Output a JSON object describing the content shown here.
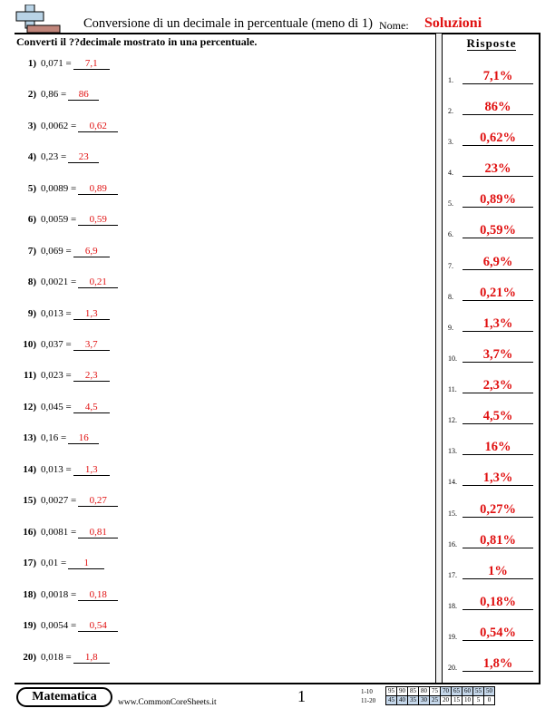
{
  "header": {
    "title": "Conversione di un decimale in percentuale (meno di 1)",
    "name_label": "Nome:",
    "solutions_label": "Soluzioni"
  },
  "instructions": "Converti il ??decimale mostrato in una percentuale.",
  "answers_header": "Risposte",
  "problems": [
    {
      "num": "1)",
      "expr": "0,071 =",
      "answer": "7,1"
    },
    {
      "num": "2)",
      "expr": "0,86 =",
      "answer": "86"
    },
    {
      "num": "3)",
      "expr": "0,0062 =",
      "answer": "0,62"
    },
    {
      "num": "4)",
      "expr": "0,23 =",
      "answer": "23"
    },
    {
      "num": "5)",
      "expr": "0,0089 =",
      "answer": "0,89"
    },
    {
      "num": "6)",
      "expr": "0,0059 =",
      "answer": "0,59"
    },
    {
      "num": "7)",
      "expr": "0,069 =",
      "answer": "6,9"
    },
    {
      "num": "8)",
      "expr": "0,0021 =",
      "answer": "0,21"
    },
    {
      "num": "9)",
      "expr": "0,013 =",
      "answer": "1,3"
    },
    {
      "num": "10)",
      "expr": "0,037 =",
      "answer": "3,7"
    },
    {
      "num": "11)",
      "expr": "0,023 =",
      "answer": "2,3"
    },
    {
      "num": "12)",
      "expr": "0,045 =",
      "answer": "4,5"
    },
    {
      "num": "13)",
      "expr": "0,16 =",
      "answer": "16"
    },
    {
      "num": "14)",
      "expr": "0,013 =",
      "answer": "1,3"
    },
    {
      "num": "15)",
      "expr": "0,0027 =",
      "answer": "0,27"
    },
    {
      "num": "16)",
      "expr": "0,0081 =",
      "answer": "0,81"
    },
    {
      "num": "17)",
      "expr": "0,01 =",
      "answer": "1"
    },
    {
      "num": "18)",
      "expr": "0,0018 =",
      "answer": "0,18"
    },
    {
      "num": "19)",
      "expr": "0,0054 =",
      "answer": "0,54"
    },
    {
      "num": "20)",
      "expr": "0,018 =",
      "answer": "1,8"
    }
  ],
  "answer_key": [
    {
      "num": "1.",
      "value": "7,1%"
    },
    {
      "num": "2.",
      "value": "86%"
    },
    {
      "num": "3.",
      "value": "0,62%"
    },
    {
      "num": "4.",
      "value": "23%"
    },
    {
      "num": "5.",
      "value": "0,89%"
    },
    {
      "num": "6.",
      "value": "0,59%"
    },
    {
      "num": "7.",
      "value": "6,9%"
    },
    {
      "num": "8.",
      "value": "0,21%"
    },
    {
      "num": "9.",
      "value": "1,3%"
    },
    {
      "num": "10.",
      "value": "3,7%"
    },
    {
      "num": "11.",
      "value": "2,3%"
    },
    {
      "num": "12.",
      "value": "4,5%"
    },
    {
      "num": "13.",
      "value": "16%"
    },
    {
      "num": "14.",
      "value": "1,3%"
    },
    {
      "num": "15.",
      "value": "0,27%"
    },
    {
      "num": "16.",
      "value": "0,81%"
    },
    {
      "num": "17.",
      "value": "1%"
    },
    {
      "num": "18.",
      "value": "0,18%"
    },
    {
      "num": "19.",
      "value": "0,54%"
    },
    {
      "num": "20.",
      "value": "1,8%"
    }
  ],
  "footer": {
    "brand": "Matematica",
    "url": "www.CommonCoreSheets.it",
    "page_number": "1",
    "score_rows": [
      {
        "label": "1-10",
        "scores": [
          "95",
          "90",
          "85",
          "80",
          "75",
          "70",
          "65",
          "60",
          "55",
          "50"
        ]
      },
      {
        "label": "11-20",
        "scores": [
          "45",
          "40",
          "35",
          "30",
          "25",
          "20",
          "15",
          "10",
          "5",
          "0"
        ]
      }
    ]
  },
  "colors": {
    "answer_red": "#e01010",
    "score_highlight": "#c5d7ea",
    "logo_plus": "#b9d3e6",
    "logo_bar": "#c0857a"
  },
  "icons": {
    "logo": "plus-minus-logo-icon"
  }
}
